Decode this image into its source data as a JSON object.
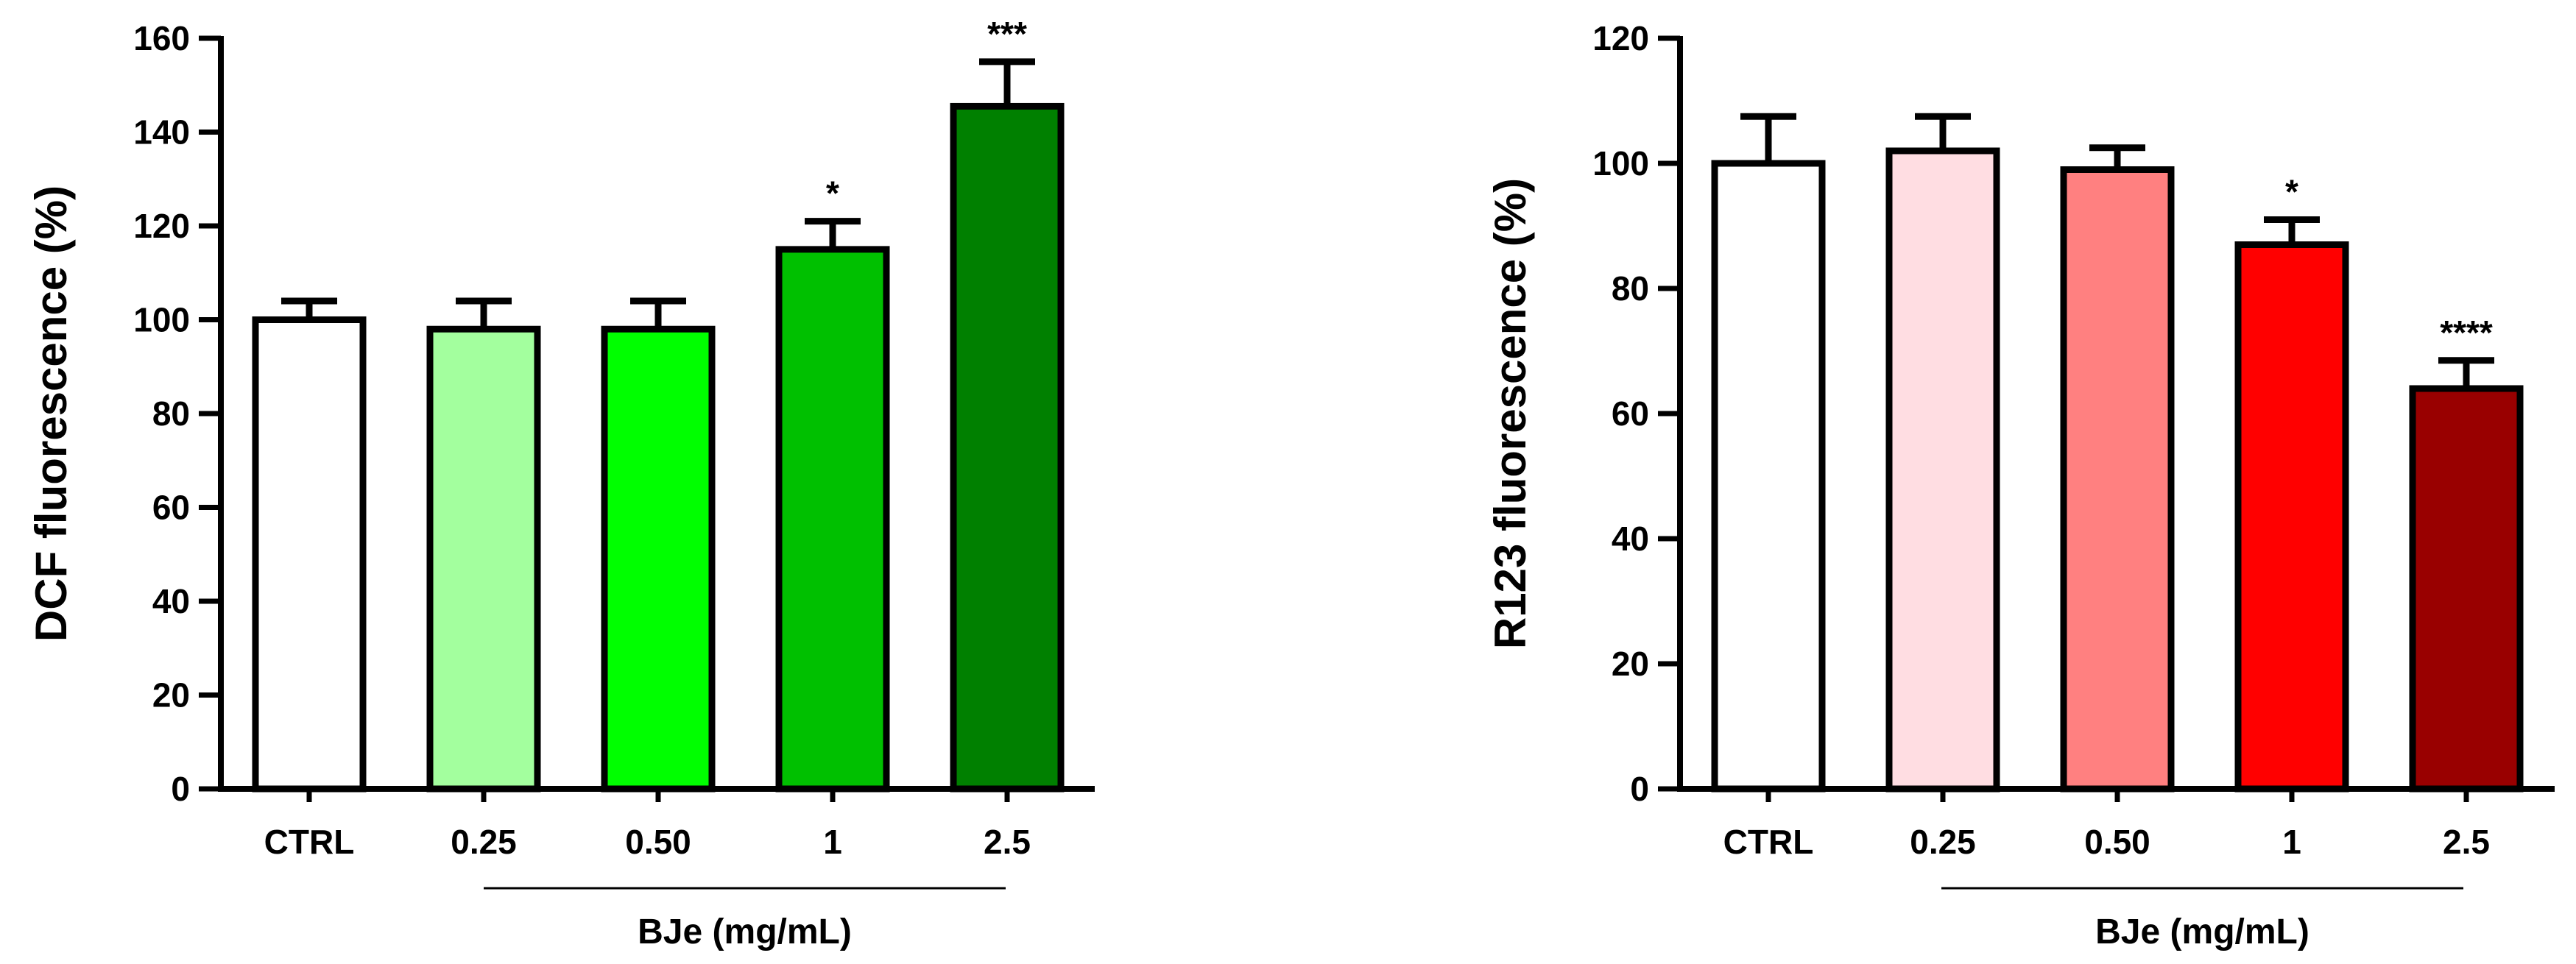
{
  "chart_data": [
    {
      "type": "bar",
      "categories": [
        "CTRL",
        "0.25",
        "0.50",
        "1",
        "2.5"
      ],
      "values": [
        100,
        98,
        98,
        115,
        145.5
      ],
      "errors": [
        4,
        6,
        6,
        6,
        9.5
      ],
      "significance": [
        "",
        "",
        "",
        "*",
        "***"
      ],
      "bar_colors": [
        "#ffffff",
        "#a3ff9e",
        "#00ff00",
        "#00c000",
        "#008000"
      ],
      "ylabel": "DCF fluorescence (%)",
      "group_label": "BJe (mg/mL)",
      "ylim": [
        0,
        160
      ],
      "yticks": [
        "0",
        "20",
        "40",
        "60",
        "80",
        "100",
        "120",
        "140",
        "160"
      ],
      "grid": false
    },
    {
      "type": "bar",
      "categories": [
        "CTRL",
        "0.25",
        "0.50",
        "1",
        "2.5"
      ],
      "values": [
        100,
        102,
        99,
        87,
        64
      ],
      "errors": [
        7.5,
        5.5,
        3.5,
        4,
        4.5
      ],
      "significance": [
        "",
        "",
        "",
        "*",
        "****"
      ],
      "bar_colors": [
        "#ffffff",
        "#ffdde2",
        "#ff8080",
        "#ff0000",
        "#990000"
      ],
      "ylabel": "R123 fluorescence (%)",
      "group_label": "BJe (mg/mL)",
      "ylim": [
        0,
        120
      ],
      "yticks": [
        "0",
        "20",
        "40",
        "60",
        "80",
        "100",
        "120"
      ],
      "grid": false
    }
  ]
}
